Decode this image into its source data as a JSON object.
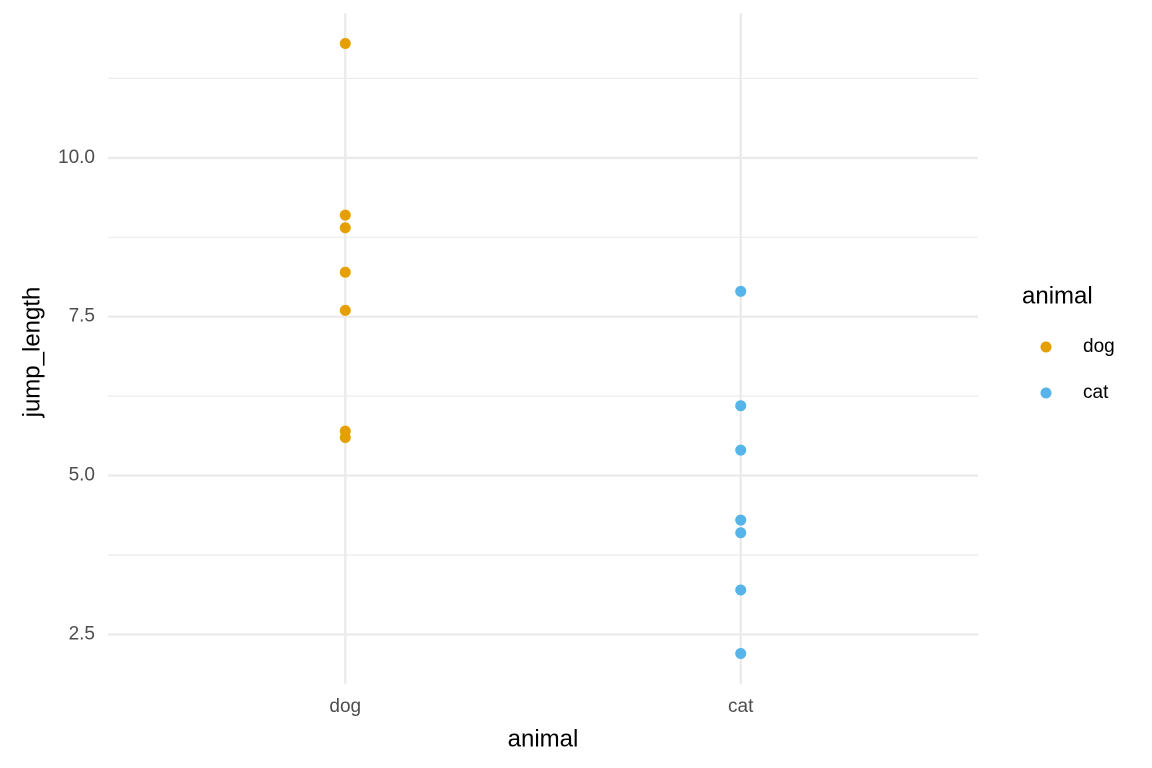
{
  "chart_data": {
    "type": "scatter",
    "xlabel": "animal",
    "ylabel": "jump_length",
    "legend_title": "animal",
    "categories": [
      "dog",
      "cat"
    ],
    "series": [
      {
        "name": "dog",
        "color": "#E69F00",
        "values": [
          11.8,
          9.1,
          8.9,
          8.2,
          7.6,
          5.7,
          5.6
        ]
      },
      {
        "name": "cat",
        "color": "#56B4E9",
        "values": [
          7.9,
          6.1,
          5.4,
          4.3,
          4.1,
          3.2,
          2.2
        ]
      }
    ],
    "ylim": [
      1.72,
      12.28
    ],
    "yticks": [
      {
        "value": 2.5,
        "label": "2.5"
      },
      {
        "value": 5,
        "label": "5.0"
      },
      7.5,
      {
        "value": 10,
        "label": "10.0"
      }
    ],
    "minor_yticks": [
      3.75,
      6.25,
      8.75,
      11.25
    ],
    "grid": true,
    "legend": "right"
  }
}
